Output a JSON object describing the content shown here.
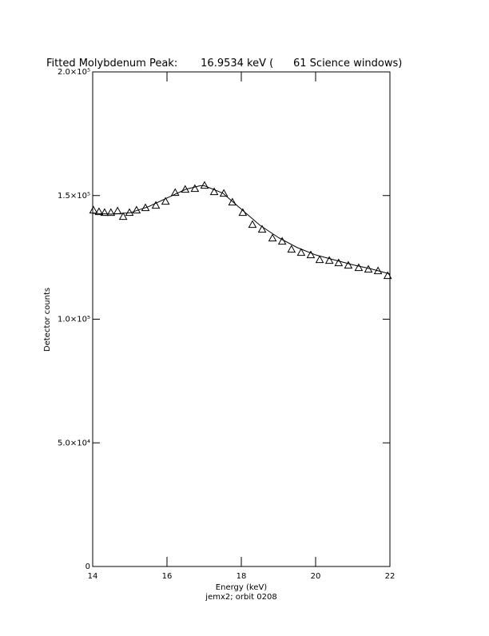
{
  "chart_data": {
    "type": "scatter",
    "title": "Fitted Molybdenum Peak:       16.9534 keV (      61 Science windows)",
    "x_label": "Energy (keV)",
    "subtitle": "jemx2; orbit 0208",
    "y_label": "Detector counts",
    "xlim": [
      14,
      22
    ],
    "xticks": [
      14,
      16,
      18,
      20,
      22
    ],
    "ylim": [
      0,
      200000
    ],
    "yticks": [
      0,
      {
        "value": 50000,
        "label": "5.0×10⁴"
      },
      {
        "value": 100000,
        "label": "1.0×10⁵"
      },
      {
        "value": 150000,
        "label": "1.5×10⁵"
      },
      {
        "value": 200000,
        "label": "2.0×10⁵"
      }
    ],
    "series": [
      {
        "type": "scatter",
        "marker": "triangle",
        "color": "#000000",
        "x": [
          14.02,
          14.17,
          14.32,
          14.49,
          14.67,
          14.82,
          14.99,
          15.18,
          15.42,
          15.7,
          15.96,
          16.22,
          16.49,
          16.75,
          17.01,
          17.27,
          17.53,
          17.76,
          18.04,
          18.3,
          18.56,
          18.84,
          19.1,
          19.35,
          19.61,
          19.87,
          20.11,
          20.37,
          20.62,
          20.88,
          21.16,
          21.42,
          21.68,
          21.94
        ],
        "values": [
          144100,
          143460,
          143130,
          143130,
          143780,
          141520,
          143130,
          144100,
          145070,
          146040,
          147660,
          151210,
          152500,
          152830,
          154120,
          151540,
          150890,
          147330,
          143130,
          138290,
          136350,
          132790,
          131500,
          128270,
          126980,
          126010,
          124070,
          123750,
          122780,
          121810,
          120840,
          120190,
          119550,
          117610
        ]
      },
      {
        "type": "line",
        "color": "#000000",
        "x": [
          14.0,
          14.5,
          15.0,
          15.5,
          16.0,
          16.5,
          16.9,
          17.0,
          17.5,
          18.0,
          18.5,
          19.0,
          19.5,
          20.0,
          20.5,
          21.0,
          21.5,
          22.0
        ],
        "values": [
          142800,
          142500,
          143000,
          145500,
          149000,
          152500,
          154000,
          154000,
          151000,
          144500,
          138000,
          133000,
          129000,
          126000,
          124000,
          122000,
          120300,
          118300
        ]
      }
    ]
  }
}
